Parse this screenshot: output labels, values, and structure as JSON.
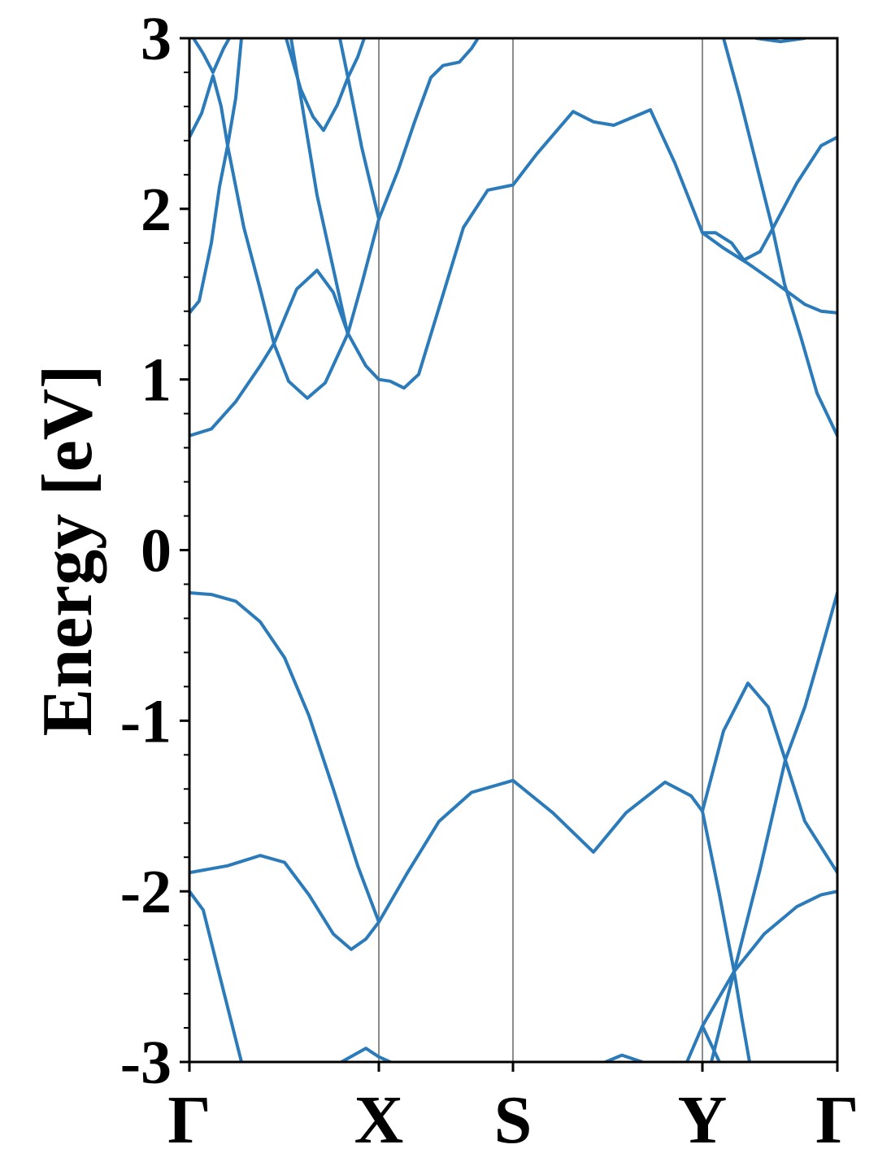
{
  "chart_data": {
    "type": "line",
    "ylabel": "Energy [eV]",
    "xlim": [
      0,
      7.97
    ],
    "ylim": [
      -3,
      3
    ],
    "xticks": [
      {
        "value": 0,
        "label": "Γ"
      },
      {
        "value": 2.33,
        "label": "X"
      },
      {
        "value": 3.98,
        "label": "S"
      },
      {
        "value": 6.31,
        "label": "Y"
      },
      {
        "value": 7.97,
        "label": "Γ"
      }
    ],
    "yticks": [
      -3,
      -2,
      -1,
      0,
      1,
      2,
      3
    ],
    "yticks_minor": [
      -2.8,
      -2.6,
      -2.4,
      -2.2,
      -1.8,
      -1.6,
      -1.4,
      -1.2,
      -0.8,
      -0.6,
      -0.4,
      -0.2,
      0.2,
      0.4,
      0.6,
      0.8,
      1.2,
      1.4,
      1.6,
      1.8,
      2.2,
      2.4,
      2.6,
      2.8
    ],
    "xgrid": true,
    "grid_color": "#8c8c8c",
    "series": [
      {
        "color": "#2b7bba",
        "x": [
          0,
          0.27,
          0.57,
          0.87,
          1.17,
          1.47,
          1.77,
          2.07,
          2.33,
          2.67,
          3.07,
          3.47,
          3.98,
          4.47,
          4.97,
          5.37,
          5.85,
          6.17,
          6.31,
          6.57,
          6.87,
          7.12,
          7.33,
          7.57,
          7.97
        ],
        "values": [
          -0.25,
          -0.26,
          -0.3,
          -0.42,
          -0.63,
          -0.97,
          -1.4,
          -1.85,
          -2.18,
          -1.9,
          -1.59,
          -1.42,
          -1.35,
          -1.54,
          -1.77,
          -1.54,
          -1.36,
          -1.44,
          -1.53,
          -1.06,
          -0.78,
          -0.92,
          -1.23,
          -1.59,
          -1.89
        ]
      },
      {
        "color": "#2b7bba",
        "x": [
          0,
          0.47,
          0.87,
          1.17,
          1.47,
          1.77,
          1.99,
          2.17,
          2.33
        ],
        "values": [
          -1.89,
          -1.85,
          -1.79,
          -1.83,
          -2.02,
          -2.25,
          -2.34,
          -2.28,
          -2.18
        ]
      },
      {
        "color": "#2b7bba",
        "x": [
          6.42,
          6.7,
          7.02,
          7.33,
          7.57,
          7.77,
          7.97
        ],
        "values": [
          -3.0,
          -2.47,
          -1.87,
          -1.23,
          -0.92,
          -0.59,
          -0.25
        ]
      },
      {
        "color": "#2b7bba",
        "x": [
          6.31,
          6.52,
          6.7,
          6.79,
          6.89
        ],
        "values": [
          -1.53,
          -2.02,
          -2.47,
          -2.73,
          -3.0
        ]
      },
      {
        "color": "#2b7bba",
        "x": [
          6.31,
          6.7,
          7.07,
          7.47,
          7.77,
          7.97
        ],
        "values": [
          -2.79,
          -2.47,
          -2.25,
          -2.09,
          -2.02,
          -2.0
        ]
      },
      {
        "color": "#2b7bba",
        "x": [
          6.12,
          6.31,
          6.52
        ],
        "values": [
          -3.0,
          -2.79,
          -3.0
        ]
      },
      {
        "color": "#2b7bba",
        "x": [
          0,
          0.17,
          0.37,
          0.64
        ],
        "values": [
          -2.0,
          -2.11,
          -2.49,
          -3.0
        ]
      },
      {
        "color": "#2b7bba",
        "x": [
          1.87,
          2.17,
          2.33,
          2.47
        ],
        "values": [
          -3.0,
          -2.92,
          -2.97,
          -3.0
        ]
      },
      {
        "color": "#2b7bba",
        "x": [
          5.12,
          5.32,
          5.57
        ],
        "values": [
          -3.0,
          -2.96,
          -3.0
        ]
      },
      {
        "color": "#2b7bba",
        "x": [
          0,
          0.27,
          0.57,
          0.87,
          1.04,
          1.32,
          1.57,
          1.77,
          1.95,
          2.17,
          2.33,
          2.47,
          2.64,
          2.82,
          3.07,
          3.37,
          3.67,
          3.98,
          4.27,
          4.72,
          4.97,
          5.22,
          5.67,
          5.97,
          6.31,
          6.47,
          6.67,
          6.82,
          7.02,
          7.17,
          7.47,
          7.77,
          7.97
        ],
        "values": [
          0.67,
          0.71,
          0.87,
          1.08,
          1.21,
          1.53,
          1.64,
          1.51,
          1.27,
          1.08,
          1.0,
          0.99,
          0.95,
          1.03,
          1.42,
          1.89,
          2.11,
          2.14,
          2.32,
          2.57,
          2.51,
          2.49,
          2.58,
          2.27,
          1.86,
          1.86,
          1.8,
          1.7,
          1.75,
          1.88,
          2.15,
          2.37,
          2.42
        ]
      },
      {
        "color": "#2b7bba",
        "x": [
          6.31,
          6.57,
          6.87,
          7.17,
          7.37,
          7.57,
          7.77,
          7.97
        ],
        "values": [
          1.86,
          1.77,
          1.68,
          1.58,
          1.51,
          1.44,
          1.4,
          1.39
        ]
      },
      {
        "color": "#2b7bba",
        "x": [
          6.57,
          6.77,
          6.97,
          7.17,
          7.32,
          7.52,
          7.72,
          7.97
        ],
        "values": [
          3.0,
          2.65,
          2.27,
          1.89,
          1.56,
          1.25,
          0.92,
          0.67
        ]
      },
      {
        "color": "#2b7bba",
        "x": [
          0,
          0.12,
          0.27,
          0.37,
          0.47,
          0.57,
          0.64
        ],
        "values": [
          1.39,
          1.46,
          1.8,
          2.13,
          2.37,
          2.65,
          3.0
        ]
      },
      {
        "color": "#2b7bba",
        "x": [
          0,
          0.15,
          0.29,
          0.39,
          0.47,
          0.67,
          0.87,
          1.04,
          1.22,
          1.45,
          1.67,
          1.95,
          2.12,
          2.33,
          2.57,
          2.77,
          2.97,
          3.12,
          3.32,
          3.47,
          3.55
        ],
        "values": [
          2.42,
          2.56,
          2.78,
          2.6,
          2.37,
          1.89,
          1.53,
          1.21,
          0.99,
          0.89,
          0.98,
          1.27,
          1.56,
          1.94,
          2.23,
          2.51,
          2.77,
          2.84,
          2.86,
          2.94,
          3.0
        ]
      },
      {
        "color": "#2b7bba",
        "x": [
          0.05,
          0.17,
          0.29,
          0.42,
          0.49
        ],
        "values": [
          3.0,
          2.91,
          2.8,
          2.94,
          3.0
        ]
      },
      {
        "color": "#2b7bba",
        "x": [
          1.19,
          1.37,
          1.52,
          1.65,
          1.82,
          1.95,
          2.07,
          2.15
        ],
        "values": [
          3.0,
          2.7,
          2.54,
          2.46,
          2.61,
          2.77,
          2.89,
          3.0
        ]
      },
      {
        "color": "#2b7bba",
        "x": [
          1.25,
          1.57,
          1.95
        ],
        "values": [
          3.0,
          2.08,
          1.26
        ]
      },
      {
        "color": "#2b7bba",
        "x": [
          1.85,
          1.95,
          2.12,
          2.33
        ],
        "values": [
          3.0,
          2.77,
          2.36,
          1.94
        ]
      },
      {
        "color": "#2b7bba",
        "x": [
          6.97,
          7.27,
          7.57
        ],
        "values": [
          3.0,
          2.98,
          3.0
        ]
      }
    ]
  }
}
